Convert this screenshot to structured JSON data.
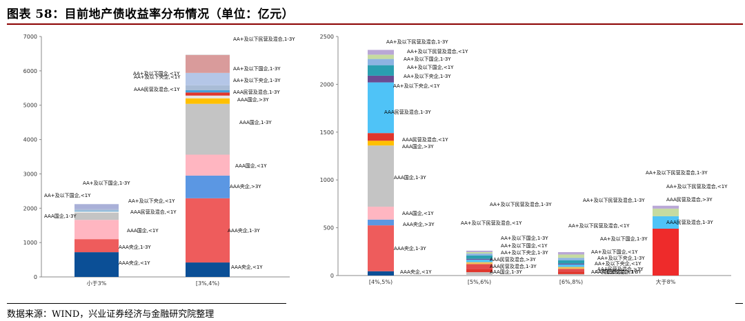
{
  "figure_title": "图表 58：目前地产债收益率分布情况（单位：亿元）",
  "source": "数据来源：WIND，兴业证券经济与金融研究院整理",
  "chart_data": [
    {
      "type": "bar",
      "stacked": true,
      "categories": [
        "小于3%",
        "[3%,4%)"
      ],
      "ylim": [
        0,
        7000
      ],
      "yticks": [
        0,
        1000,
        2000,
        3000,
        4000,
        5000,
        6000,
        7000
      ],
      "series": [
        {
          "name": "AAA央企,<1Y",
          "color": "#0b4f96",
          "values": [
            720,
            420
          ]
        },
        {
          "name": "AAA央企,1-3Y",
          "color": "#ee5c5c",
          "values": [
            380,
            1870
          ]
        },
        {
          "name": "AAA央企,>3Y",
          "color": "#5b97e3",
          "values": [
            0,
            660
          ]
        },
        {
          "name": "AAA国企,<1Y",
          "color": "#ffb6c1",
          "values": [
            560,
            610
          ]
        },
        {
          "name": "AAA国企,1-3Y",
          "color": "#c4c4c4",
          "values": [
            210,
            1480
          ]
        },
        {
          "name": "AAA国企,>3Y",
          "color": "#ffc000",
          "values": [
            0,
            160
          ]
        },
        {
          "name": "AAA民营及混合,<1Y",
          "color": "#e6e6e6",
          "values": [
            40,
            80
          ]
        },
        {
          "name": "AAA民营及混合,1-3Y",
          "color": "#e0362c",
          "values": [
            0,
            90
          ]
        },
        {
          "name": "AA+及以下央企,<1Y",
          "color": "#4a9fd5",
          "values": [
            20,
            70
          ]
        },
        {
          "name": "AA+及以下央企,1-3Y",
          "color": "#a9bcd6",
          "values": [
            40,
            140
          ]
        },
        {
          "name": "AA+及以下国企,<1Y",
          "color": "#b4c6e7",
          "values": [
            0,
            360
          ]
        },
        {
          "name": "AA+及以下国企,1-3Y",
          "color": "#a9b0d8",
          "values": [
            150,
            0
          ]
        },
        {
          "name": "AA+及以下国企,1-3Y",
          "color": "#d99b9b",
          "values": [
            0,
            520
          ]
        },
        {
          "name": "AA+及以下民营及混合,1-3Y",
          "color": "#e2dede",
          "values": [
            0,
            20
          ]
        }
      ],
      "annotations": [
        "AAA央企,<1Y",
        "AAA央企,1-3Y",
        "AAA国企,<1Y",
        "AAA国企,1-3Y",
        "AAA民营及混合,<1Y",
        "AA+及以下央企,<1Y",
        "AA+及以下国企,<1Y",
        "AA+及以下国企,1-3Y",
        "AAA央企,<1Y",
        "AAA央企,1-3Y",
        "AAA央企,>3Y",
        "AAA国企,<1Y",
        "AAA国企,1-3Y",
        "AAA国企,>3Y",
        "AAA民营及混合,<1Y",
        "AAA民营及混合,1-3Y",
        "AA+及以下央企,<1Y",
        "AA+及以下央企,1-3Y",
        "AA+及以下国企,<1Y",
        "AA+及以下国企,1-3Y",
        "AA+及以下民营及混合,1-3Y"
      ]
    },
    {
      "type": "bar",
      "stacked": true,
      "categories": [
        "[4%,5%)",
        "[5%,6%)",
        "[6%,8%)",
        "大于8%"
      ],
      "ylim": [
        0,
        2500
      ],
      "yticks": [
        0,
        500,
        1000,
        1500,
        2000,
        2500
      ],
      "series": [
        {
          "name": "AAA央企,<1Y",
          "color": "#0b4f96",
          "values": [
            45,
            0,
            0,
            0
          ]
        },
        {
          "name": "AAA央企,1-3Y",
          "color": "#ee5c5c",
          "values": [
            480,
            0,
            0,
            0
          ]
        },
        {
          "name": "AAA央企,>3Y",
          "color": "#5b97e3",
          "values": [
            60,
            0,
            0,
            0
          ]
        },
        {
          "name": "AAA国企,<1Y",
          "color": "#ffb6c1",
          "values": [
            135,
            0,
            0,
            0
          ]
        },
        {
          "name": "AAA国企,1-3Y",
          "color": "#c4c4c4",
          "values": [
            640,
            35,
            15,
            0
          ]
        },
        {
          "name": "AAA国企,>3Y",
          "color": "#ffc000",
          "values": [
            50,
            0,
            0,
            0
          ]
        },
        {
          "name": "AAA民营及混合,<1Y",
          "color": "#e0362c",
          "values": [
            80,
            30,
            25,
            0
          ]
        },
        {
          "name": "AAA民营及混合,1-3Y",
          "color": "#e34b4b",
          "values": [
            0,
            55,
            30,
            0
          ]
        },
        {
          "name": "AAA民营及混合,>3Y",
          "color": "#f0c05a",
          "values": [
            0,
            20,
            20,
            0
          ]
        },
        {
          "name": "AAA民营及混合,1-3Y",
          "color": "#ee2b2b",
          "values": [
            0,
            0,
            0,
            490
          ]
        },
        {
          "name": "AAA民营及混合,>3Y",
          "color": "#4fc3f7",
          "values": [
            0,
            0,
            0,
            130
          ]
        },
        {
          "name": "AA+及以下央企,<1Y",
          "color": "#4fc3f7",
          "values": [
            530,
            25,
            25,
            0
          ]
        },
        {
          "name": "AA+及以下央企,1-3Y",
          "color": "#6a4c93",
          "values": [
            70,
            10,
            10,
            0
          ]
        },
        {
          "name": "AA+及以下国企,<1Y",
          "color": "#2a9fb0",
          "values": [
            110,
            35,
            35,
            0
          ]
        },
        {
          "name": "AA+及以下国企,1-3Y",
          "color": "#8db3e2",
          "values": [
            65,
            20,
            25,
            0
          ]
        },
        {
          "name": "AA+及以下民营及混合,<1Y",
          "color": "#c6dba0",
          "values": [
            45,
            15,
            35,
            80
          ]
        },
        {
          "name": "AA+及以下民营及混合,1-3Y",
          "color": "#b9a7d6",
          "values": [
            50,
            15,
            25,
            30
          ]
        }
      ],
      "annotations": [
        "AA+及以下民营及混合,1-3Y",
        "AA+及以下民营及混合,<1Y",
        "AA+及以下国企,1-3Y",
        "AA+及以下国企,<1Y",
        "AA+及以下央企,1-3Y",
        "AA+及以下央企,<1Y",
        "AAA民营及混合,1-3Y",
        "AAA民营及混合,<1Y",
        "AAA国企,>3Y",
        "AAA国企,1-3Y",
        "AAA国企,<1Y",
        "AAA央企,>3Y",
        "AAA央企,1-3Y",
        "AAA央企,<1Y",
        "AA+及以下民营及混合,1-3Y",
        "AA+及以下民营及混合,<1Y",
        "AA+及以下国企,1-3Y",
        "AA+及以下国企,<1Y",
        "AA+及以下央企,1-3Y",
        "AAA民营及混合,>3Y",
        "AAA民营及混合,1-3Y",
        "AAA国企,1-3Y",
        "AA+及以下民营及混合,1-3Y",
        "AA+及以下民营及混合,<1Y",
        "AA+及以下国企,1-3Y",
        "AA+及以下国企,<1Y",
        "AA+及以下央企,1-3Y",
        "AA+及以下央企,<1Y",
        "AAA民营及混合,>3Y",
        "AAA民营及混合,1-3Y",
        "AAA民营及混合,<1Y",
        "AA+及以下民营及混合,1-3Y",
        "AA+及以下民营及混合,<1Y",
        "AAA民营及混合,>3Y",
        "AAA民营及混合,1-3Y"
      ]
    }
  ]
}
